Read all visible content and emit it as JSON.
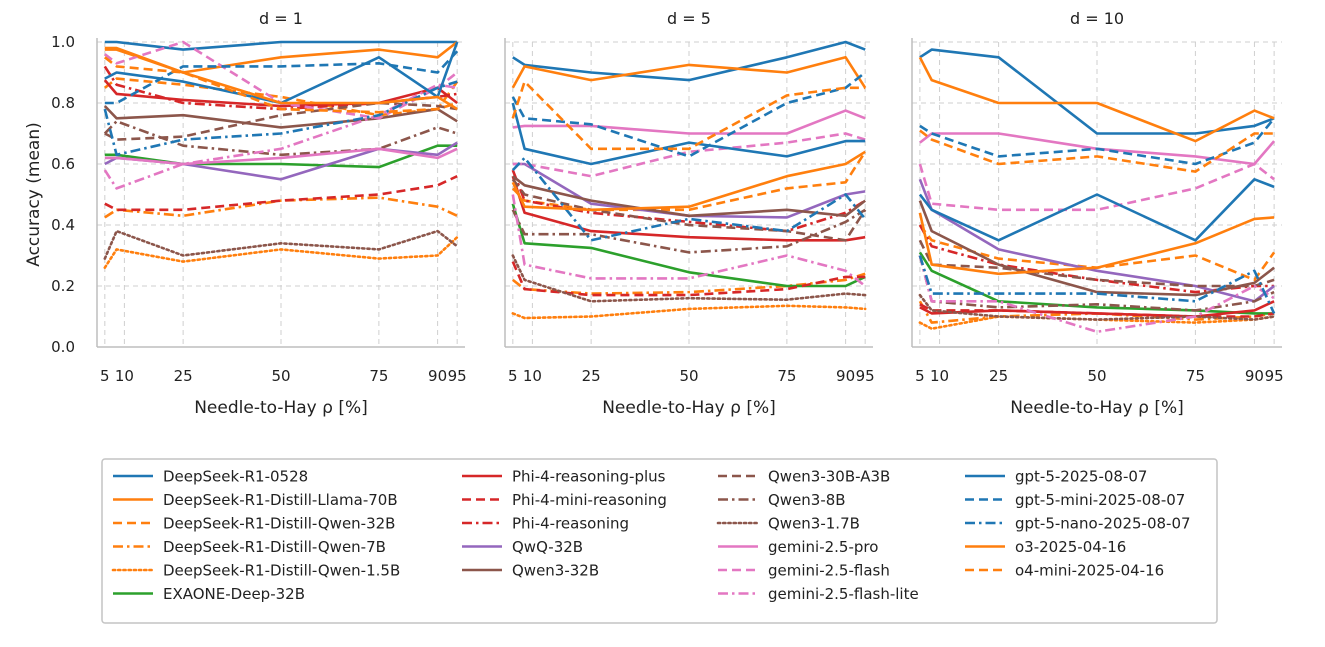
{
  "chart_data": {
    "type": "line",
    "ylabel": "Accuracy (mean)",
    "xlabel": "Needle-to-Hay ρ [%]",
    "x": [
      5,
      8,
      25,
      50,
      75,
      90,
      95
    ],
    "xticks": [
      5,
      10,
      25,
      50,
      75,
      90,
      95
    ],
    "yticks": [
      0.0,
      0.2,
      0.4,
      0.6,
      0.8,
      1.0
    ],
    "ylim": [
      0,
      1
    ],
    "grid": true,
    "legend_position": "bottom",
    "panels": [
      {
        "title": "d = 1",
        "series": [
          {
            "name": "DeepSeek-R1-0528",
            "values": [
              1.0,
              1.0,
              0.975,
              1.0,
              1.0,
              1.0,
              1.0
            ]
          },
          {
            "name": "DeepSeek-R1-Distill-Llama-70B",
            "values": [
              0.975,
              0.975,
              0.9,
              0.95,
              0.975,
              0.95,
              1.0
            ]
          },
          {
            "name": "DeepSeek-R1-Distill-Qwen-32B",
            "values": [
              0.85,
              0.88,
              0.86,
              0.82,
              0.76,
              0.78,
              0.87
            ]
          },
          {
            "name": "DeepSeek-R1-Distill-Qwen-7B",
            "values": [
              0.425,
              0.45,
              0.43,
              0.48,
              0.49,
              0.46,
              0.43
            ]
          },
          {
            "name": "DeepSeek-R1-Distill-Qwen-1.5B",
            "values": [
              0.26,
              0.32,
              0.28,
              0.32,
              0.29,
              0.3,
              0.36
            ]
          },
          {
            "name": "EXAONE-Deep-32B",
            "values": [
              0.63,
              0.63,
              0.6,
              0.6,
              0.59,
              0.66,
              0.66
            ]
          },
          {
            "name": "Phi-4-reasoning-plus",
            "values": [
              0.875,
              0.83,
              0.81,
              0.79,
              0.8,
              0.85,
              0.8
            ]
          },
          {
            "name": "Phi-4-mini-reasoning",
            "values": [
              0.47,
              0.45,
              0.45,
              0.48,
              0.5,
              0.53,
              0.56
            ]
          },
          {
            "name": "Phi-4-reasoning",
            "values": [
              0.92,
              0.86,
              0.8,
              0.78,
              0.8,
              0.82,
              0.83
            ]
          },
          {
            "name": "QwQ-32B",
            "values": [
              0.6,
              0.62,
              0.6,
              0.55,
              0.65,
              0.63,
              0.67
            ]
          },
          {
            "name": "Qwen3-32B",
            "values": [
              0.79,
              0.75,
              0.76,
              0.72,
              0.75,
              0.78,
              0.74
            ]
          },
          {
            "name": "Qwen3-30B-A3B",
            "values": [
              0.7,
              0.68,
              0.69,
              0.76,
              0.8,
              0.79,
              0.78
            ]
          },
          {
            "name": "Qwen3-8B",
            "values": [
              0.7,
              0.74,
              0.66,
              0.63,
              0.65,
              0.72,
              0.7
            ]
          },
          {
            "name": "Qwen3-1.7B",
            "values": [
              0.29,
              0.38,
              0.3,
              0.34,
              0.32,
              0.38,
              0.33
            ]
          },
          {
            "name": "gemini-2.5-pro",
            "values": [
              0.62,
              0.62,
              0.6,
              0.62,
              0.65,
              0.62,
              0.65
            ]
          },
          {
            "name": "gemini-2.5-flash",
            "values": [
              0.96,
              0.93,
              1.0,
              0.8,
              0.75,
              0.85,
              0.9
            ]
          },
          {
            "name": "gemini-2.5-flash-lite",
            "values": [
              0.58,
              0.52,
              0.6,
              0.65,
              0.76,
              0.86,
              0.85
            ]
          },
          {
            "name": "gpt-5-2025-08-07",
            "values": [
              0.88,
              0.9,
              0.87,
              0.8,
              0.95,
              0.82,
              1.0
            ]
          },
          {
            "name": "gpt-5-mini-2025-08-07",
            "values": [
              0.8,
              0.8,
              0.92,
              0.92,
              0.93,
              0.9,
              0.97
            ]
          },
          {
            "name": "gpt-5-nano-2025-08-07",
            "values": [
              0.78,
              0.63,
              0.68,
              0.7,
              0.76,
              0.85,
              0.87
            ]
          },
          {
            "name": "o3-2025-04-16",
            "values": [
              0.98,
              0.98,
              0.9,
              0.8,
              0.8,
              0.82,
              0.78
            ]
          },
          {
            "name": "o4-mini-2025-04-16",
            "values": [
              0.95,
              0.92,
              0.9,
              0.78,
              0.77,
              0.78,
              0.8
            ]
          }
        ]
      },
      {
        "title": "d = 5",
        "series": [
          {
            "name": "DeepSeek-R1-0528",
            "values": [
              0.95,
              0.925,
              0.9,
              0.875,
              0.95,
              1.0,
              0.975
            ]
          },
          {
            "name": "DeepSeek-R1-Distill-Llama-70B",
            "values": [
              0.85,
              0.92,
              0.875,
              0.925,
              0.9,
              0.95,
              0.85
            ]
          },
          {
            "name": "DeepSeek-R1-Distill-Qwen-32B",
            "values": [
              0.52,
              0.48,
              0.45,
              0.45,
              0.52,
              0.54,
              0.64
            ]
          },
          {
            "name": "DeepSeek-R1-Distill-Qwen-7B",
            "values": [
              0.22,
              0.19,
              0.175,
              0.18,
              0.2,
              0.22,
              0.24
            ]
          },
          {
            "name": "DeepSeek-R1-Distill-Qwen-1.5B",
            "values": [
              0.11,
              0.095,
              0.1,
              0.125,
              0.135,
              0.13,
              0.125
            ]
          },
          {
            "name": "EXAONE-Deep-32B",
            "values": [
              0.47,
              0.34,
              0.325,
              0.245,
              0.2,
              0.2,
              0.23
            ]
          },
          {
            "name": "Phi-4-reasoning-plus",
            "values": [
              0.56,
              0.44,
              0.38,
              0.36,
              0.35,
              0.35,
              0.36
            ]
          },
          {
            "name": "Phi-4-mini-reasoning",
            "values": [
              0.28,
              0.19,
              0.17,
              0.17,
              0.19,
              0.23,
              0.23
            ]
          },
          {
            "name": "Phi-4-reasoning",
            "values": [
              0.58,
              0.48,
              0.44,
              0.41,
              0.38,
              0.44,
              0.48
            ]
          },
          {
            "name": "QwQ-32B",
            "values": [
              0.6,
              0.6,
              0.47,
              0.43,
              0.425,
              0.5,
              0.51
            ]
          },
          {
            "name": "Qwen3-32B",
            "values": [
              0.56,
              0.53,
              0.48,
              0.43,
              0.45,
              0.43,
              0.48
            ]
          },
          {
            "name": "Qwen3-30B-A3B",
            "values": [
              0.55,
              0.5,
              0.45,
              0.4,
              0.38,
              0.35,
              0.45
            ]
          },
          {
            "name": "Qwen3-8B",
            "values": [
              0.45,
              0.37,
              0.37,
              0.31,
              0.33,
              0.41,
              0.45
            ]
          },
          {
            "name": "Qwen3-1.7B",
            "values": [
              0.3,
              0.22,
              0.15,
              0.16,
              0.155,
              0.175,
              0.17
            ]
          },
          {
            "name": "gemini-2.5-pro",
            "values": [
              0.72,
              0.725,
              0.725,
              0.7,
              0.7,
              0.775,
              0.75
            ]
          },
          {
            "name": "gemini-2.5-flash",
            "values": [
              0.6,
              0.6,
              0.56,
              0.64,
              0.67,
              0.7,
              0.68
            ]
          },
          {
            "name": "gemini-2.5-flash-lite",
            "values": [
              0.5,
              0.27,
              0.225,
              0.225,
              0.3,
              0.25,
              0.2
            ]
          },
          {
            "name": "gpt-5-2025-08-07",
            "values": [
              0.8,
              0.65,
              0.6,
              0.67,
              0.625,
              0.675,
              0.675
            ]
          },
          {
            "name": "gpt-5-mini-2025-08-07",
            "values": [
              0.82,
              0.75,
              0.73,
              0.625,
              0.8,
              0.85,
              0.9
            ]
          },
          {
            "name": "gpt-5-nano-2025-08-07",
            "values": [
              0.58,
              0.62,
              0.35,
              0.42,
              0.38,
              0.5,
              0.42
            ]
          },
          {
            "name": "o3-2025-04-16",
            "values": [
              0.54,
              0.46,
              0.45,
              0.46,
              0.56,
              0.6,
              0.64
            ]
          },
          {
            "name": "o4-mini-2025-04-16",
            "values": [
              0.75,
              0.87,
              0.65,
              0.65,
              0.825,
              0.85,
              0.85
            ]
          }
        ]
      },
      {
        "title": "d = 10",
        "series": [
          {
            "name": "DeepSeek-R1-0528",
            "values": [
              0.95,
              0.975,
              0.95,
              0.7,
              0.7,
              0.725,
              0.75
            ]
          },
          {
            "name": "DeepSeek-R1-Distill-Llama-70B",
            "values": [
              0.95,
              0.875,
              0.8,
              0.8,
              0.675,
              0.775,
              0.75
            ]
          },
          {
            "name": "DeepSeek-R1-Distill-Qwen-32B",
            "values": [
              0.4,
              0.35,
              0.29,
              0.26,
              0.3,
              0.22,
              0.31
            ]
          },
          {
            "name": "DeepSeek-R1-Distill-Qwen-7B",
            "values": [
              0.15,
              0.08,
              0.1,
              0.11,
              0.09,
              0.1,
              0.11
            ]
          },
          {
            "name": "DeepSeek-R1-Distill-Qwen-1.5B",
            "values": [
              0.08,
              0.06,
              0.1,
              0.09,
              0.08,
              0.09,
              0.1
            ]
          },
          {
            "name": "EXAONE-Deep-32B",
            "values": [
              0.31,
              0.25,
              0.15,
              0.13,
              0.12,
              0.11,
              0.11
            ]
          },
          {
            "name": "Phi-4-reasoning-plus",
            "values": [
              0.13,
              0.11,
              0.12,
              0.11,
              0.1,
              0.12,
              0.15
            ]
          },
          {
            "name": "Phi-4-mini-reasoning",
            "values": [
              0.14,
              0.12,
              0.12,
              0.11,
              0.1,
              0.1,
              0.11
            ]
          },
          {
            "name": "Phi-4-reasoning",
            "values": [
              0.4,
              0.33,
              0.27,
              0.22,
              0.18,
              0.2,
              0.2
            ]
          },
          {
            "name": "QwQ-32B",
            "values": [
              0.55,
              0.45,
              0.32,
              0.25,
              0.2,
              0.15,
              0.2
            ]
          },
          {
            "name": "Qwen3-32B",
            "values": [
              0.48,
              0.38,
              0.27,
              0.18,
              0.17,
              0.21,
              0.26
            ]
          },
          {
            "name": "Qwen3-30B-A3B",
            "values": [
              0.35,
              0.27,
              0.26,
              0.22,
              0.2,
              0.2,
              0.22
            ]
          },
          {
            "name": "Qwen3-8B",
            "values": [
              0.3,
              0.15,
              0.13,
              0.14,
              0.12,
              0.15,
              0.18
            ]
          },
          {
            "name": "Qwen3-1.7B",
            "values": [
              0.17,
              0.12,
              0.1,
              0.09,
              0.1,
              0.09,
              0.1
            ]
          },
          {
            "name": "gemini-2.5-pro",
            "values": [
              0.67,
              0.7,
              0.7,
              0.65,
              0.625,
              0.6,
              0.675
            ]
          },
          {
            "name": "gemini-2.5-flash",
            "values": [
              0.6,
              0.47,
              0.45,
              0.45,
              0.52,
              0.6,
              0.55
            ]
          },
          {
            "name": "gemini-2.5-flash-lite",
            "values": [
              0.3,
              0.15,
              0.15,
              0.05,
              0.1,
              0.2,
              0.16
            ]
          },
          {
            "name": "gpt-5-2025-08-07",
            "values": [
              0.5,
              0.45,
              0.35,
              0.5,
              0.35,
              0.55,
              0.525
            ]
          },
          {
            "name": "gpt-5-mini-2025-08-07",
            "values": [
              0.725,
              0.7,
              0.625,
              0.65,
              0.6,
              0.67,
              0.75
            ]
          },
          {
            "name": "gpt-5-nano-2025-08-07",
            "values": [
              0.3,
              0.175,
              0.175,
              0.175,
              0.15,
              0.25,
              0.11
            ]
          },
          {
            "name": "o3-2025-04-16",
            "values": [
              0.44,
              0.27,
              0.24,
              0.26,
              0.34,
              0.42,
              0.425
            ]
          },
          {
            "name": "o4-mini-2025-04-16",
            "values": [
              0.71,
              0.68,
              0.6,
              0.625,
              0.575,
              0.7,
              0.7
            ]
          }
        ]
      }
    ],
    "legend": [
      {
        "name": "DeepSeek-R1-0528",
        "color": "#1f77b4",
        "dash": "solid"
      },
      {
        "name": "DeepSeek-R1-Distill-Llama-70B",
        "color": "#ff7f0e",
        "dash": "solid"
      },
      {
        "name": "DeepSeek-R1-Distill-Qwen-32B",
        "color": "#ff7f0e",
        "dash": "dashed"
      },
      {
        "name": "DeepSeek-R1-Distill-Qwen-7B",
        "color": "#ff7f0e",
        "dash": "dashdot"
      },
      {
        "name": "DeepSeek-R1-Distill-Qwen-1.5B",
        "color": "#ff7f0e",
        "dash": "dotted"
      },
      {
        "name": "EXAONE-Deep-32B",
        "color": "#2ca02c",
        "dash": "solid"
      },
      {
        "name": "Phi-4-reasoning-plus",
        "color": "#d62728",
        "dash": "solid"
      },
      {
        "name": "Phi-4-mini-reasoning",
        "color": "#d62728",
        "dash": "dashed"
      },
      {
        "name": "Phi-4-reasoning",
        "color": "#d62728",
        "dash": "dashdot"
      },
      {
        "name": "QwQ-32B",
        "color": "#9467bd",
        "dash": "solid"
      },
      {
        "name": "Qwen3-32B",
        "color": "#8c564b",
        "dash": "solid"
      },
      {
        "name": "Qwen3-30B-A3B",
        "color": "#8c564b",
        "dash": "dashed"
      },
      {
        "name": "Qwen3-8B",
        "color": "#8c564b",
        "dash": "dashdot"
      },
      {
        "name": "Qwen3-1.7B",
        "color": "#8c564b",
        "dash": "dotted"
      },
      {
        "name": "gemini-2.5-pro",
        "color": "#e377c2",
        "dash": "solid"
      },
      {
        "name": "gemini-2.5-flash",
        "color": "#e377c2",
        "dash": "dashed"
      },
      {
        "name": "gemini-2.5-flash-lite",
        "color": "#e377c2",
        "dash": "dashdot"
      },
      {
        "name": "gpt-5-2025-08-07",
        "color": "#1f77b4",
        "dash": "solid"
      },
      {
        "name": "gpt-5-mini-2025-08-07",
        "color": "#1f77b4",
        "dash": "dashed"
      },
      {
        "name": "gpt-5-nano-2025-08-07",
        "color": "#1f77b4",
        "dash": "dashdot"
      },
      {
        "name": "o3-2025-04-16",
        "color": "#ff7f0e",
        "dash": "solid"
      },
      {
        "name": "o4-mini-2025-04-16",
        "color": "#ff7f0e",
        "dash": "dashed"
      }
    ]
  }
}
